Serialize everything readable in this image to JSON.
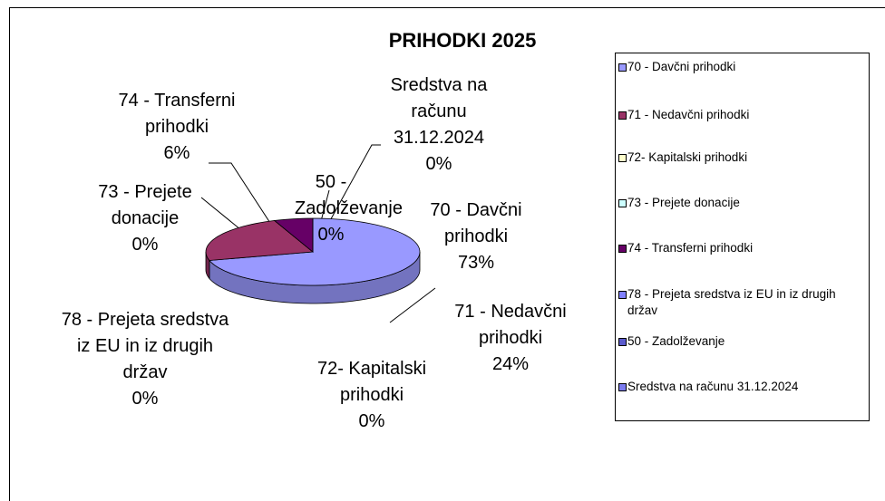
{
  "chart_data": {
    "type": "pie",
    "title": "PRIHODKI 2025",
    "categories": [
      "70 - Davčni prihodki",
      "71 - Nedavčni prihodki",
      "72- Kapitalski prihodki",
      "73 - Prejete donacije",
      "74 - Transferni prihodki",
      "78 - Prejeta sredstva iz EU in iz drugih držav",
      "50 - Zadolževanje",
      "Sredstva na računu 31.12.2024"
    ],
    "values": [
      73,
      24,
      0,
      0,
      6,
      0,
      0,
      0
    ],
    "value_labels": [
      "73%",
      "24%",
      "0%",
      "0%",
      "6%",
      "0%",
      "0%",
      "0%"
    ],
    "colors": [
      "#9999ff",
      "#993366",
      "#ffffcc",
      "#ccffff",
      "#660066",
      "#8080ff",
      "#5a5acc",
      "#7b7bef"
    ],
    "legend": "right"
  }
}
